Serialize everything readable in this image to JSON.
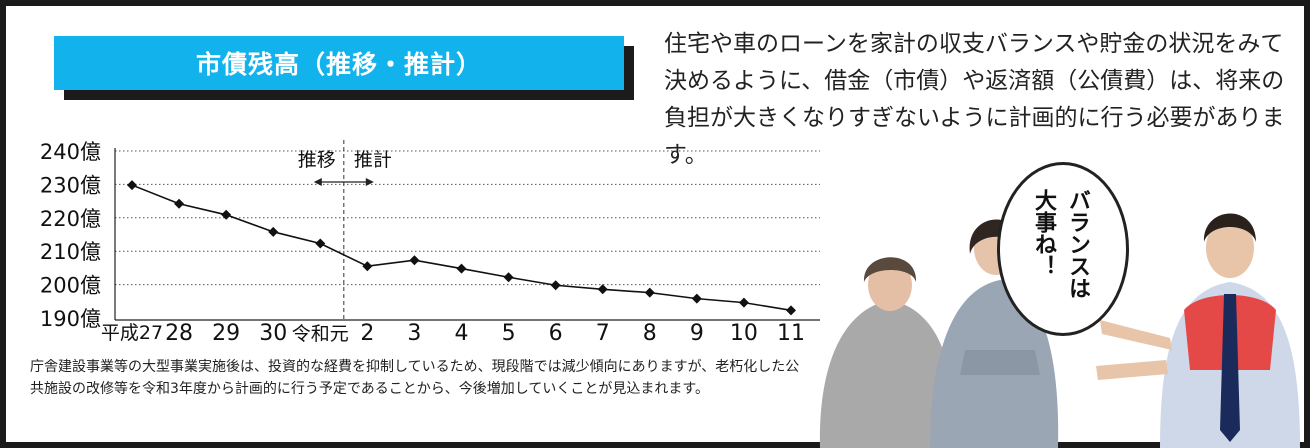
{
  "title": "市債残高（推移・推計）",
  "description": "住宅や車のローンを家計の収支バランスや貯金の状況をみて決めるように、借金（市債）や返済額（公債費）は、将来の負担が大きくなりすぎないように計画的に行う必要があります。",
  "note": "庁舎建設事業等の大型事業実施後は、投資的な経費を抑制しているため、現段階では減少傾向にありますが、老朽化した公共施設の改修等を令和3年度から計画的に行う予定であることから、今後増加していくことが見込まれます。",
  "bubble": {
    "line1": "バランスは",
    "line2": "大事ね！"
  },
  "colors": {
    "title_bg": "#12b3ec",
    "frame": "#1a1a1a",
    "vest": "#e53935",
    "tie": "#1a2a5a"
  },
  "chart_data": {
    "type": "line",
    "categories": [
      "平成27",
      "28",
      "29",
      "30",
      "令和元",
      "2",
      "3",
      "4",
      "5",
      "6",
      "7",
      "8",
      "9",
      "10",
      "11"
    ],
    "series": [
      {
        "values": [
          229.8,
          224.2,
          220.9,
          215.8,
          212.3,
          205.5,
          207.3,
          204.8,
          202.2,
          199.8,
          198.6,
          197.6,
          195.8,
          194.6,
          192.3
        ]
      }
    ],
    "yticks": [
      "190億",
      "200億",
      "210億",
      "220億",
      "230億",
      "240億"
    ],
    "ylim": [
      190,
      240
    ],
    "grid": "dotted horizontal",
    "divider": {
      "after_index": 4,
      "left_label": "推移",
      "right_label": "推計"
    }
  }
}
